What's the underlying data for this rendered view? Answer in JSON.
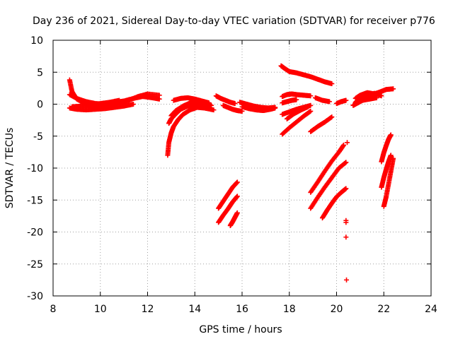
{
  "chart_data": {
    "type": "scatter",
    "title": "Day 236 of 2021, Sidereal Day-to-day VTEC variation (SDTVAR) for receiver p776",
    "xlabel": "GPS time / hours",
    "ylabel": "SDTVAR / TECUs",
    "xlim": [
      8,
      24
    ],
    "ylim": [
      -30,
      10
    ],
    "xticks": [
      8,
      10,
      12,
      14,
      16,
      18,
      20,
      22,
      24
    ],
    "yticks": [
      -30,
      -25,
      -20,
      -15,
      -10,
      -5,
      0,
      5,
      10
    ],
    "grid": true,
    "marker": "plus",
    "color": "#ff0000",
    "segments": [
      {
        "name": "band-a",
        "x": [
          8.7,
          8.8,
          9.0,
          9.3,
          9.6,
          10.0,
          10.4,
          10.8,
          11.2,
          11.6,
          12.0,
          12.5
        ],
        "y": [
          3.8,
          2.0,
          0.8,
          0.2,
          -0.3,
          -0.5,
          -0.3,
          0.2,
          0.6,
          1.2,
          1.6,
          1.4
        ]
      },
      {
        "name": "band-b",
        "x": [
          8.7,
          9.0,
          9.4,
          9.8,
          10.2,
          10.6,
          11.0,
          11.4,
          11.8,
          12.2,
          12.5
        ],
        "y": [
          1.5,
          0.9,
          0.4,
          0.1,
          0.0,
          0.3,
          0.5,
          0.9,
          1.2,
          1.0,
          0.8
        ]
      },
      {
        "name": "band-c",
        "x": [
          8.7,
          9.0,
          9.4,
          9.8,
          10.2,
          10.6,
          11.0,
          11.4
        ],
        "y": [
          -0.6,
          -0.8,
          -0.9,
          -0.8,
          -0.7,
          -0.5,
          -0.3,
          0.0
        ]
      },
      {
        "name": "band-d",
        "x": [
          8.8,
          9.2,
          9.6,
          10.0,
          10.4,
          10.8
        ],
        "y": [
          -0.4,
          -0.3,
          -0.1,
          0.1,
          0.3,
          0.6
        ]
      },
      {
        "name": "dip-1",
        "x": [
          12.85,
          12.9,
          13.0,
          13.1,
          13.3,
          13.5,
          13.8,
          14.1,
          14.4,
          14.8
        ],
        "y": [
          -8.0,
          -6.0,
          -4.5,
          -3.5,
          -2.4,
          -1.6,
          -0.9,
          -0.5,
          -0.6,
          -0.9
        ]
      },
      {
        "name": "dip-2",
        "x": [
          12.9,
          13.0,
          13.2,
          13.4,
          13.7,
          14.0,
          14.3,
          14.6
        ],
        "y": [
          -3.0,
          -2.3,
          -1.5,
          -0.8,
          -0.3,
          0.0,
          -0.2,
          -0.6
        ]
      },
      {
        "name": "dip-3",
        "x": [
          13.0,
          13.2,
          13.5,
          13.8,
          14.1,
          14.4,
          14.7
        ],
        "y": [
          -1.8,
          -1.0,
          -0.3,
          0.2,
          0.4,
          0.2,
          -0.2
        ]
      },
      {
        "name": "dip-4",
        "x": [
          13.1,
          13.4,
          13.7,
          14.0,
          14.3,
          14.6
        ],
        "y": [
          0.6,
          0.9,
          1.0,
          0.8,
          0.5,
          0.2
        ]
      },
      {
        "name": "mid-1",
        "x": [
          14.9,
          15.1,
          15.3,
          15.5,
          15.7
        ],
        "y": [
          1.3,
          0.9,
          0.6,
          0.3,
          0.1
        ]
      },
      {
        "name": "mid-2",
        "x": [
          15.2,
          15.4,
          15.6,
          15.8,
          16.0
        ],
        "y": [
          -0.2,
          -0.5,
          -0.8,
          -1.0,
          -1.1
        ]
      },
      {
        "name": "mid-3",
        "x": [
          15.9,
          16.2,
          16.5,
          16.8,
          17.1,
          17.4
        ],
        "y": [
          0.3,
          0.0,
          -0.3,
          -0.5,
          -0.6,
          -0.5
        ]
      },
      {
        "name": "mid-4",
        "x": [
          16.0,
          16.3,
          16.6,
          16.9,
          17.2,
          17.4
        ],
        "y": [
          -0.4,
          -0.7,
          -0.9,
          -1.0,
          -0.8,
          -0.6
        ]
      },
      {
        "name": "drop-1",
        "x": [
          15.0,
          15.2,
          15.4,
          15.6,
          15.8
        ],
        "y": [
          -16.3,
          -15.2,
          -14.1,
          -13.0,
          -12.2
        ]
      },
      {
        "name": "drop-2",
        "x": [
          15.0,
          15.2,
          15.4,
          15.6,
          15.8
        ],
        "y": [
          -18.5,
          -17.4,
          -16.4,
          -15.3,
          -14.4
        ]
      },
      {
        "name": "drop-3",
        "x": [
          15.5,
          15.6,
          15.7,
          15.8
        ],
        "y": [
          -19.0,
          -18.4,
          -17.7,
          -17.0
        ]
      },
      {
        "name": "arc-high",
        "x": [
          17.65,
          17.8,
          18.0,
          18.3,
          18.6,
          18.9,
          19.2,
          19.5,
          19.8
        ],
        "y": [
          6.0,
          5.6,
          5.1,
          4.9,
          4.6,
          4.3,
          3.9,
          3.5,
          3.2
        ]
      },
      {
        "name": "arc-a",
        "x": [
          17.7,
          17.9,
          18.1,
          18.3,
          18.6,
          18.9
        ],
        "y": [
          1.2,
          1.5,
          1.6,
          1.5,
          1.4,
          1.3
        ]
      },
      {
        "name": "arc-b",
        "x": [
          17.7,
          17.9,
          18.1,
          18.3
        ],
        "y": [
          0.2,
          0.4,
          0.6,
          0.7
        ]
      },
      {
        "name": "arc-c",
        "x": [
          17.7,
          18.0,
          18.3,
          18.6,
          18.9
        ],
        "y": [
          -1.6,
          -1.2,
          -0.8,
          -0.5,
          -0.2
        ]
      },
      {
        "name": "arc-d",
        "x": [
          17.7,
          18.0,
          18.3,
          18.6,
          18.9
        ],
        "y": [
          -4.7,
          -3.7,
          -2.8,
          -1.9,
          -1.1
        ]
      },
      {
        "name": "arc-e",
        "x": [
          17.9,
          18.2,
          18.5,
          18.8
        ],
        "y": [
          -2.3,
          -1.5,
          -0.9,
          -0.4
        ]
      },
      {
        "name": "arc-f",
        "x": [
          18.9,
          19.2,
          19.5,
          19.8
        ],
        "y": [
          -4.3,
          -3.5,
          -2.8,
          -2.0
        ]
      },
      {
        "name": "arc-g",
        "x": [
          19.1,
          19.4,
          19.7
        ],
        "y": [
          1.0,
          0.6,
          0.4
        ]
      },
      {
        "name": "fall-1",
        "x": [
          18.9,
          19.2,
          19.5,
          19.8,
          20.1,
          20.3
        ],
        "y": [
          -13.8,
          -12.2,
          -10.5,
          -8.9,
          -7.5,
          -6.4
        ]
      },
      {
        "name": "fall-2",
        "x": [
          18.9,
          19.2,
          19.5,
          19.8,
          20.1,
          20.4
        ],
        "y": [
          -16.3,
          -14.6,
          -13.0,
          -11.5,
          -10.0,
          -9.1
        ]
      },
      {
        "name": "fall-3",
        "x": [
          19.4,
          19.6,
          19.8,
          20.0,
          20.2,
          20.4
        ],
        "y": [
          -17.8,
          -16.6,
          -15.5,
          -14.5,
          -13.8,
          -13.2
        ]
      },
      {
        "name": "isolated",
        "x": [
          20.45,
          20.4,
          20.4,
          20.4,
          20.42
        ],
        "y": [
          -6.0,
          -18.2,
          -18.5,
          -20.8,
          -27.5
        ]
      },
      {
        "name": "late-1",
        "x": [
          20.0,
          20.2,
          20.4
        ],
        "y": [
          0.1,
          0.4,
          0.6
        ]
      },
      {
        "name": "late-2",
        "x": [
          20.8,
          21.0,
          21.3,
          21.6,
          21.9,
          22.1,
          22.4
        ],
        "y": [
          0.9,
          1.4,
          1.8,
          1.6,
          2.0,
          2.3,
          2.4
        ]
      },
      {
        "name": "late-3",
        "x": [
          20.8,
          21.0,
          21.3,
          21.6,
          21.9
        ],
        "y": [
          0.3,
          0.9,
          1.3,
          1.7,
          1.3
        ]
      },
      {
        "name": "late-4",
        "x": [
          20.7,
          20.9,
          21.1,
          21.4,
          21.7
        ],
        "y": [
          -0.2,
          0.2,
          0.6,
          0.8,
          1.0
        ]
      },
      {
        "name": "steep-1",
        "x": [
          21.9,
          22.0,
          22.1,
          22.2,
          22.3
        ],
        "y": [
          -9.0,
          -7.6,
          -6.5,
          -5.5,
          -4.8
        ]
      },
      {
        "name": "steep-2",
        "x": [
          21.9,
          22.0,
          22.1,
          22.2,
          22.3
        ],
        "y": [
          -13.0,
          -11.5,
          -10.2,
          -9.0,
          -8.0
        ]
      },
      {
        "name": "steep-3",
        "x": [
          22.0,
          22.1,
          22.2,
          22.3,
          22.4
        ],
        "y": [
          -16.0,
          -14.5,
          -12.5,
          -10.5,
          -8.5
        ]
      }
    ]
  }
}
